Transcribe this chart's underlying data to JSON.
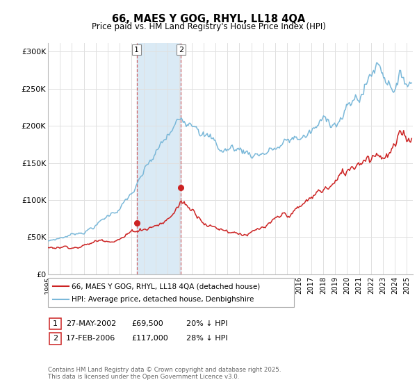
{
  "title": "66, MAES Y GOG, RHYL, LL18 4QA",
  "subtitle": "Price paid vs. HM Land Registry's House Price Index (HPI)",
  "ylabel_ticks": [
    "£0",
    "£50K",
    "£100K",
    "£150K",
    "£200K",
    "£250K",
    "£300K"
  ],
  "ytick_values": [
    0,
    50000,
    100000,
    150000,
    200000,
    250000,
    300000
  ],
  "ylim": [
    0,
    312000
  ],
  "xlim_start": 1995.0,
  "xlim_end": 2025.5,
  "hpi_color": "#7ab8d9",
  "price_color": "#cc2222",
  "sale1_year": 2002.42,
  "sale1_price": 69500,
  "sale2_year": 2006.12,
  "sale2_price": 117000,
  "shade_color": "#daeaf5",
  "vline_color": "#cc4444",
  "legend_label1": "66, MAES Y GOG, RHYL, LL18 4QA (detached house)",
  "legend_label2": "HPI: Average price, detached house, Denbighshire",
  "table_row1_num": "1",
  "table_row1_date": "27-MAY-2002",
  "table_row1_price": "£69,500",
  "table_row1_hpi": "20% ↓ HPI",
  "table_row2_num": "2",
  "table_row2_date": "17-FEB-2006",
  "table_row2_price": "£117,000",
  "table_row2_hpi": "28% ↓ HPI",
  "footer": "Contains HM Land Registry data © Crown copyright and database right 2025.\nThis data is licensed under the Open Government Licence v3.0.",
  "background_color": "#ffffff",
  "grid_color": "#e0e0e0"
}
